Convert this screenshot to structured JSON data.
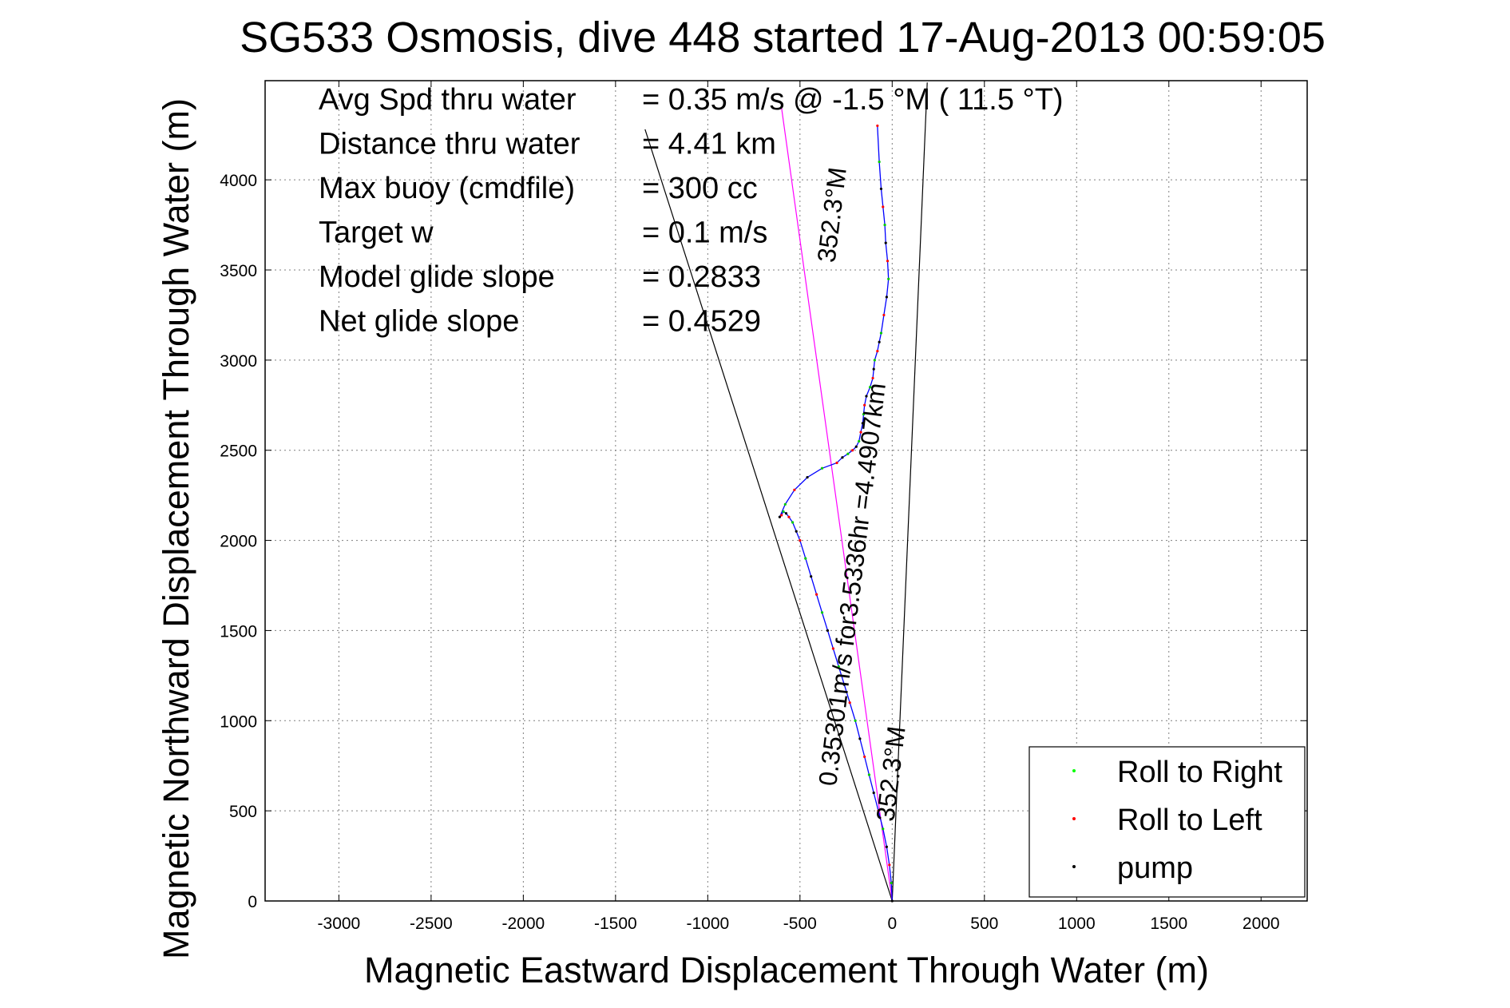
{
  "chart_data": {
    "type": "line",
    "title": "SG533 Osmosis, dive 448 started 17-Aug-2013 00:59:05",
    "xlabel": "Magnetic Eastward Displacement Through Water (m)",
    "ylabel": "Magnetic Northward Displacement Through Water (m)",
    "xlim": [
      -3400,
      2250
    ],
    "ylim": [
      0,
      4550
    ],
    "xticks": [
      -3000,
      -2500,
      -2000,
      -1500,
      -1000,
      -500,
      0,
      500,
      1000,
      1500,
      2000
    ],
    "yticks": [
      0,
      500,
      1000,
      1500,
      2000,
      2500,
      3000,
      3500,
      4000
    ],
    "grid": true,
    "legend_position": "bottom-right",
    "info_lines": [
      {
        "label": "Avg Spd thru water",
        "value": "=  0.35 m/s @  -1.5 °M ( 11.5 °T)"
      },
      {
        "label": "Distance thru water",
        "value": "=  4.41 km"
      },
      {
        "label": "Max buoy (cmdfile)",
        "value": "= 300 cc"
      },
      {
        "label": "Target w",
        "value": "= 0.1 m/s"
      },
      {
        "label": "Model glide slope",
        "value": "= 0.2833"
      },
      {
        "label": "Net glide slope",
        "value": "= 0.4529"
      }
    ],
    "annotations": [
      {
        "text": "0.35301m/s for3.5336hr =4.4907km",
        "x": -170,
        "y": 1750,
        "rotation": -83
      },
      {
        "text": "352.3°M",
        "x": 40,
        "y": 700,
        "rotation": -83
      },
      {
        "text": "352.3°M",
        "x": -280,
        "y": 3800,
        "rotation": -83
      }
    ],
    "reference_lines": [
      {
        "x": [
          0,
          -1340
        ],
        "y": [
          0,
          4280
        ],
        "color": "#000000"
      },
      {
        "x": [
          0,
          190
        ],
        "y": [
          0,
          4540
        ],
        "color": "#000000"
      },
      {
        "x": [
          0,
          -600
        ],
        "y": [
          0,
          4400
        ],
        "color": "#ff00ff"
      }
    ],
    "series": [
      {
        "name": "track",
        "color": "#0000ff",
        "x": [
          0,
          -5,
          -15,
          -30,
          -50,
          -75,
          -100,
          -125,
          -150,
          -175,
          -200,
          -230,
          -260,
          -290,
          -320,
          -350,
          -380,
          -410,
          -440,
          -470,
          -500,
          -520,
          -540,
          -560,
          -575,
          -590,
          -600,
          -610,
          -580,
          -530,
          -460,
          -380,
          -300,
          -270,
          -240,
          -215,
          -195,
          -180,
          -170,
          -160,
          -155,
          -150,
          -140,
          -120,
          -105,
          -100,
          -95,
          -80,
          -70,
          -60,
          -45,
          -30,
          -20,
          -25,
          -35,
          -40,
          -50,
          -60,
          -70,
          -80
        ],
        "y": [
          0,
          100,
          200,
          300,
          400,
          500,
          600,
          700,
          800,
          900,
          1000,
          1100,
          1200,
          1300,
          1400,
          1500,
          1600,
          1700,
          1800,
          1900,
          2000,
          2050,
          2100,
          2130,
          2150,
          2160,
          2140,
          2130,
          2200,
          2280,
          2350,
          2400,
          2430,
          2460,
          2480,
          2500,
          2520,
          2550,
          2600,
          2650,
          2700,
          2750,
          2800,
          2850,
          2900,
          2950,
          3000,
          3050,
          3100,
          3150,
          3250,
          3350,
          3450,
          3550,
          3650,
          3750,
          3850,
          3950,
          4100,
          4300
        ]
      }
    ],
    "legend": [
      {
        "label": "Roll to Right",
        "color": "#00ff00"
      },
      {
        "label": "Roll to Left",
        "color": "#ff0000"
      },
      {
        "label": "pump",
        "color": "#000000"
      }
    ]
  }
}
